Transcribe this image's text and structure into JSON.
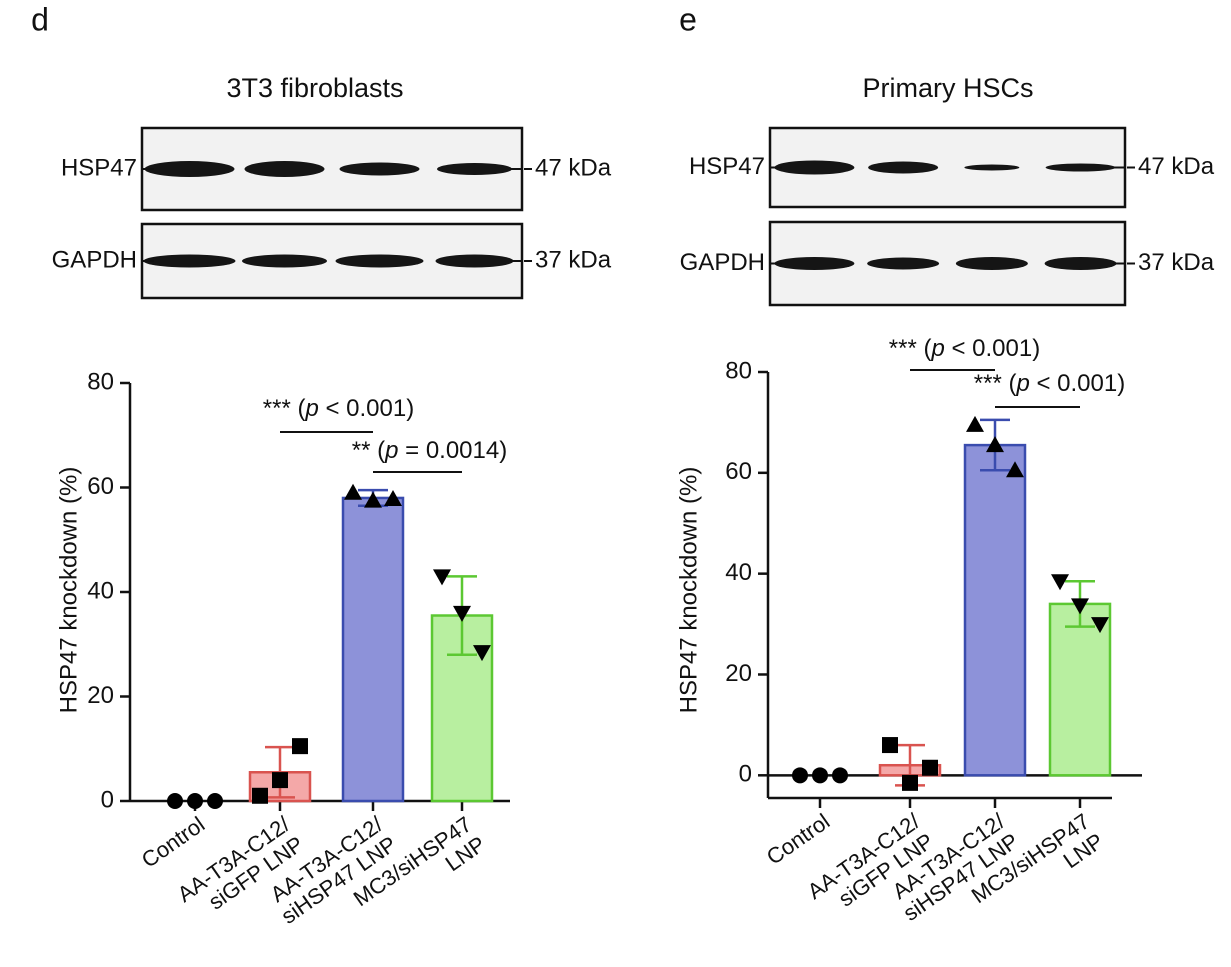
{
  "chart_data": [
    {
      "type": "bar",
      "panel_label": "d",
      "blot_title": "3T3 fibroblasts",
      "blot_rows": [
        {
          "protein": "HSP47",
          "size": "47 kDa"
        },
        {
          "protein": "GAPDH",
          "size": "37 kDa"
        }
      ],
      "ylabel": "HSP47 knockdown (%)",
      "categories": [
        [
          "Control"
        ],
        [
          "AA-T3A-C12/",
          "siGFP LNP"
        ],
        [
          "AA-T3A-C12/",
          "siHSP47 LNP"
        ],
        [
          "MC3/siHSP47",
          "LNP"
        ]
      ],
      "values": [
        0,
        5.5,
        58,
        35.5
      ],
      "errors": [
        0,
        4.8,
        1.5,
        7.5
      ],
      "points": [
        [
          0,
          0,
          0
        ],
        [
          1,
          4,
          10.5
        ],
        [
          59,
          57.5,
          57.8
        ],
        [
          43,
          36,
          28.5
        ]
      ],
      "markers": [
        "circle",
        "square",
        "triangle",
        "triangle-down"
      ],
      "fills": [
        "none",
        "#f4a8a8",
        "#8d92d9",
        "#b8efa0"
      ],
      "colors": [
        "#000000",
        "#d9534f",
        "#3a4cae",
        "#5cc832"
      ],
      "ylim": [
        0,
        80
      ],
      "yticks": [
        0,
        20,
        40,
        60,
        80
      ],
      "annotations": [
        {
          "stars": "*** (",
          "p": "p",
          "rest": " < 0.001)",
          "between": [
            1,
            2
          ]
        },
        {
          "stars": "** (",
          "p": "p",
          "rest": " = 0.0014)",
          "between": [
            2,
            3
          ]
        }
      ]
    },
    {
      "type": "bar",
      "panel_label": "e",
      "blot_title": "Primary HSCs",
      "blot_rows": [
        {
          "protein": "HSP47",
          "size": "47 kDa"
        },
        {
          "protein": "GAPDH",
          "size": "37 kDa"
        }
      ],
      "ylabel": "HSP47 knockdown (%)",
      "categories": [
        [
          "Control"
        ],
        [
          "AA-T3A-C12/",
          "siGFP LNP"
        ],
        [
          "AA-T3A-C12/",
          "siHSP47 LNP"
        ],
        [
          "MC3/siHSP47",
          "LNP"
        ]
      ],
      "values": [
        0,
        2,
        65.5,
        34
      ],
      "errors": [
        0,
        4,
        5,
        4.5
      ],
      "points": [
        [
          0,
          0,
          0
        ],
        [
          6,
          -1.5,
          1.5
        ],
        [
          69.5,
          65.5,
          60.5
        ],
        [
          38.5,
          33.7,
          30
        ]
      ],
      "markers": [
        "circle",
        "square",
        "triangle",
        "triangle-down"
      ],
      "fills": [
        "none",
        "#f4a8a8",
        "#8d92d9",
        "#b8efa0"
      ],
      "colors": [
        "#000000",
        "#d9534f",
        "#3a4cae",
        "#5cc832"
      ],
      "ylim": [
        -4.5,
        80
      ],
      "yticks": [
        0,
        20,
        40,
        60,
        80
      ],
      "annotations": [
        {
          "stars": "*** (",
          "p": "p",
          "rest": " < 0.001)",
          "between": [
            1,
            2
          ]
        },
        {
          "stars": "*** (",
          "p": "p",
          "rest": " < 0.001)",
          "between": [
            2,
            3
          ]
        }
      ]
    }
  ]
}
